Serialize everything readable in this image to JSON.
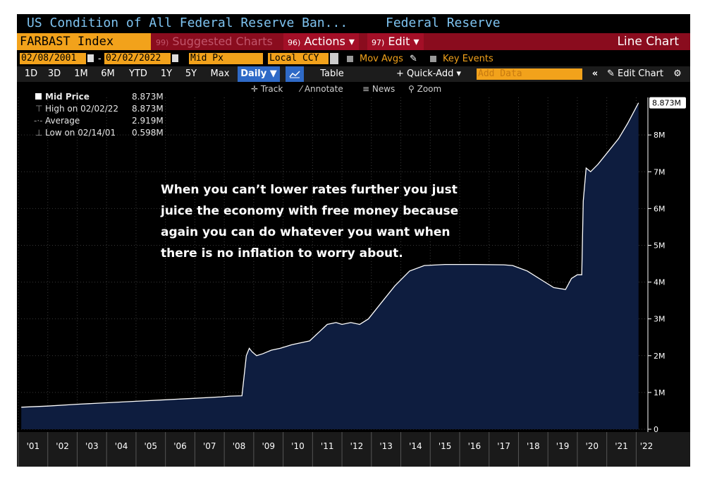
{
  "window": {
    "title": "US Condition of All Federal Reserve Ban...",
    "source": "Federal Reserve"
  },
  "menu": {
    "ticker": "FARBAST Index",
    "suggested_num": "99)",
    "suggested_label": "Suggested Charts",
    "actions_num": "96)",
    "actions_label": "Actions ▾",
    "edit_num": "97)",
    "edit_label": "Edit ▾",
    "chart_type": "Line Chart"
  },
  "dates": {
    "start": "02/08/2001",
    "separator": "-",
    "end": "02/02/2022",
    "field": "Mid Px",
    "currency": "Local CCY",
    "mov_avgs": "Mov Avgs",
    "key_events": "Key Events"
  },
  "range_buttons": [
    "1D",
    "3D",
    "1M",
    "6M",
    "YTD",
    "1Y",
    "5Y",
    "Max"
  ],
  "toolbar": {
    "period": "Daily ▼",
    "table": "Table",
    "quick_add": "+ Quick-Add ▾",
    "add_data_placeholder": "Add Data",
    "collapse": "«",
    "edit_chart": "Edit Chart",
    "gear": "⚙"
  },
  "tools": {
    "track": "Track",
    "annotate": "Annotate",
    "news": "News",
    "zoom": "Zoom"
  },
  "legend": {
    "mid_label": "Mid Price",
    "mid_value": "8.873M",
    "high_label": "High on 02/02/22",
    "high_value": "8.873M",
    "avg_label": "Average",
    "avg_value": "2.919M",
    "low_label": "Low on 02/14/01",
    "low_value": "0.598M"
  },
  "annotation": {
    "lines": [
      "When you can’t lower rates further you just",
      "juice the economy with free money because",
      "again you can do whatever you want when",
      "there is no inflation to worry about."
    ]
  },
  "colors": {
    "background": "#000000",
    "area_fill": "#0e1d3f",
    "line": "#ffffff",
    "accent_orange": "#f2a21b",
    "menu_red": "#8a0c1e",
    "title_blue": "#7ec3f0"
  },
  "chart_data": {
    "type": "area",
    "series": [
      {
        "name": "Mid Price",
        "x": [
          2001.1,
          2002.0,
          2003.0,
          2004.0,
          2005.0,
          2006.0,
          2007.0,
          2007.9,
          2008.2,
          2008.6,
          2008.75,
          2008.85,
          2008.95,
          2009.1,
          2009.3,
          2009.6,
          2009.9,
          2010.3,
          2010.9,
          2011.3,
          2011.5,
          2011.8,
          2012.0,
          2012.3,
          2012.6,
          2012.9,
          2013.3,
          2013.8,
          2014.3,
          2014.8,
          2015.5,
          2016.5,
          2017.5,
          2017.8,
          2018.3,
          2018.8,
          2019.2,
          2019.6,
          2019.8,
          2020.0,
          2020.15,
          2020.2,
          2020.3,
          2020.45,
          2020.7,
          2021.0,
          2021.4,
          2021.7,
          2022.08
        ],
        "values": [
          0.598,
          0.63,
          0.68,
          0.72,
          0.76,
          0.8,
          0.84,
          0.88,
          0.9,
          0.91,
          2.0,
          2.2,
          2.1,
          2.0,
          2.05,
          2.15,
          2.2,
          2.3,
          2.4,
          2.7,
          2.85,
          2.9,
          2.85,
          2.9,
          2.85,
          3.0,
          3.4,
          3.9,
          4.3,
          4.45,
          4.48,
          4.48,
          4.47,
          4.45,
          4.3,
          4.05,
          3.85,
          3.8,
          4.1,
          4.2,
          4.2,
          6.2,
          7.1,
          7.0,
          7.2,
          7.5,
          7.9,
          8.3,
          8.873
        ]
      }
    ],
    "x_tick_labels": [
      "'01",
      "'02",
      "'03",
      "'04",
      "'05",
      "'06",
      "'07",
      "'08",
      "'09",
      "'10",
      "'11",
      "'12",
      "'13",
      "'14",
      "'15",
      "'16",
      "'17",
      "'18",
      "'19",
      "'20",
      "'21",
      "'22"
    ],
    "y_tick_values": [
      0,
      1,
      2,
      3,
      4,
      5,
      6,
      7,
      8
    ],
    "y_tick_labels": [
      "0",
      "1M",
      "2M",
      "3M",
      "4M",
      "5M",
      "6M",
      "7M",
      "8M"
    ],
    "last_value_label": "8.873M",
    "ylim": [
      0,
      9.02
    ],
    "xlim": [
      2001.0,
      2022.35
    ],
    "grid": true
  }
}
